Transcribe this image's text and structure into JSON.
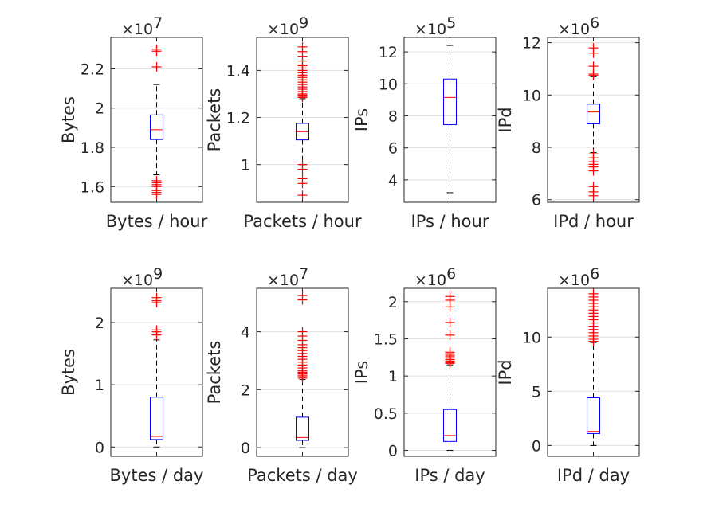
{
  "chart_data": [
    {
      "type": "box",
      "xlabel": "Bytes / hour",
      "ylabel": "Bytes",
      "multiplier": "7",
      "ylim": [
        1.52,
        2.36
      ],
      "yticks": [
        1.6,
        1.8,
        2.0,
        2.2
      ],
      "ytick_labels": [
        "1.6",
        "1.8",
        "2",
        "2.2"
      ],
      "box": {
        "q1": 1.84,
        "median": 1.89,
        "q3": 1.965,
        "whisker_low": 1.66,
        "whisker_high": 2.12
      },
      "outliers": [
        2.3,
        2.29,
        2.21,
        1.63,
        1.62,
        1.61,
        1.6,
        1.58,
        1.57,
        1.56
      ]
    },
    {
      "type": "box",
      "xlabel": "Packets / hour",
      "ylabel": "Packets",
      "multiplier": "9",
      "ylim": [
        0.84,
        1.54
      ],
      "yticks": [
        1.0,
        1.2,
        1.4
      ],
      "ytick_labels": [
        "1",
        "1.2",
        "1.4"
      ],
      "box": {
        "q1": 1.105,
        "median": 1.14,
        "q3": 1.175,
        "whisker_low": 1.0,
        "whisker_high": 1.28
      },
      "outliers": [
        1.5,
        1.48,
        1.46,
        1.44,
        1.42,
        1.41,
        1.4,
        1.39,
        1.38,
        1.37,
        1.36,
        1.35,
        1.34,
        1.33,
        1.32,
        1.31,
        1.3,
        1.295,
        1.29,
        1.285,
        1.0,
        0.98,
        0.94,
        0.92,
        0.87
      ]
    },
    {
      "type": "box",
      "xlabel": "IPs / hour",
      "ylabel": "IPs",
      "multiplier": "5",
      "ylim": [
        2.6,
        12.9
      ],
      "yticks": [
        4,
        6,
        8,
        10,
        12
      ],
      "ytick_labels": [
        "4",
        "6",
        "8",
        "10",
        "12"
      ],
      "box": {
        "q1": 7.45,
        "median": 9.15,
        "q3": 10.3,
        "whisker_low": 3.2,
        "whisker_high": 12.4
      },
      "outliers": []
    },
    {
      "type": "box",
      "xlabel": "IPd / hour",
      "ylabel": "IPd",
      "multiplier": "6",
      "ylim": [
        5.9,
        12.2
      ],
      "yticks": [
        6,
        8,
        10,
        12
      ],
      "ytick_labels": [
        "6",
        "8",
        "10",
        "12"
      ],
      "box": {
        "q1": 8.9,
        "median": 9.35,
        "q3": 9.65,
        "whisker_low": 7.8,
        "whisker_high": 10.7
      },
      "outliers": [
        11.8,
        11.6,
        11.1,
        10.8,
        10.75,
        7.75,
        7.6,
        7.45,
        7.35,
        7.25,
        7.1,
        6.5,
        6.3,
        6.15
      ]
    },
    {
      "type": "box",
      "xlabel": "Bytes / day",
      "ylabel": "Bytes",
      "multiplier": "9",
      "ylim": [
        -0.15,
        2.55
      ],
      "yticks": [
        0,
        1,
        2
      ],
      "ytick_labels": [
        "0",
        "1",
        "2"
      ],
      "box": {
        "q1": 0.12,
        "median": 0.17,
        "q3": 0.8,
        "whisker_low": 0.0,
        "whisker_high": 1.72
      },
      "outliers": [
        2.4,
        2.35,
        2.32,
        1.88,
        1.85,
        1.8
      ]
    },
    {
      "type": "box",
      "xlabel": "Packets / day",
      "ylabel": "Packets",
      "multiplier": "7",
      "ylim": [
        -0.3,
        5.5
      ],
      "yticks": [
        0,
        2,
        4
      ],
      "ytick_labels": [
        "0",
        "2",
        "4"
      ],
      "box": {
        "q1": 0.25,
        "median": 0.35,
        "q3": 1.05,
        "whisker_low": 0.0,
        "whisker_high": 2.35
      },
      "outliers": [
        5.25,
        5.1,
        4.0,
        3.85,
        3.7,
        3.55,
        3.45,
        3.35,
        3.25,
        3.15,
        3.05,
        2.95,
        2.85,
        2.75,
        2.65,
        2.6,
        2.55,
        2.5,
        2.45,
        2.4
      ]
    },
    {
      "type": "box",
      "xlabel": "IPs / day",
      "ylabel": "IPs",
      "multiplier": "6",
      "ylim": [
        -0.08,
        2.18
      ],
      "yticks": [
        0,
        0.5,
        1.0,
        1.5,
        2.0
      ],
      "ytick_labels": [
        "0",
        "0.5",
        "1",
        "1.5",
        "2"
      ],
      "box": {
        "q1": 0.12,
        "median": 0.2,
        "q3": 0.55,
        "whisker_low": 0.0,
        "whisker_high": 1.15
      },
      "outliers": [
        2.07,
        2.02,
        1.93,
        1.72,
        1.55,
        1.32,
        1.3,
        1.28,
        1.26,
        1.24,
        1.22,
        1.2,
        1.18,
        1.17
      ]
    },
    {
      "type": "box",
      "xlabel": "IPd / day",
      "ylabel": "IPd",
      "multiplier": "6",
      "ylim": [
        -1.0,
        14.5
      ],
      "yticks": [
        0,
        5,
        10
      ],
      "ytick_labels": [
        "0",
        "5",
        "10"
      ],
      "box": {
        "q1": 1.1,
        "median": 1.3,
        "q3": 4.4,
        "whisker_low": 0.0,
        "whisker_high": 9.5
      },
      "outliers": [
        14.0,
        13.7,
        13.4,
        13.1,
        12.8,
        12.5,
        12.2,
        11.9,
        11.6,
        11.3,
        11.0,
        10.7,
        10.4,
        10.1,
        9.8,
        9.6
      ]
    }
  ],
  "colors": {
    "box": "#0000ff",
    "median": "#ff0000",
    "outlier": "#ff0000",
    "whisker": "#000000",
    "axis": "#262626",
    "grid": "#dfdfdf"
  }
}
